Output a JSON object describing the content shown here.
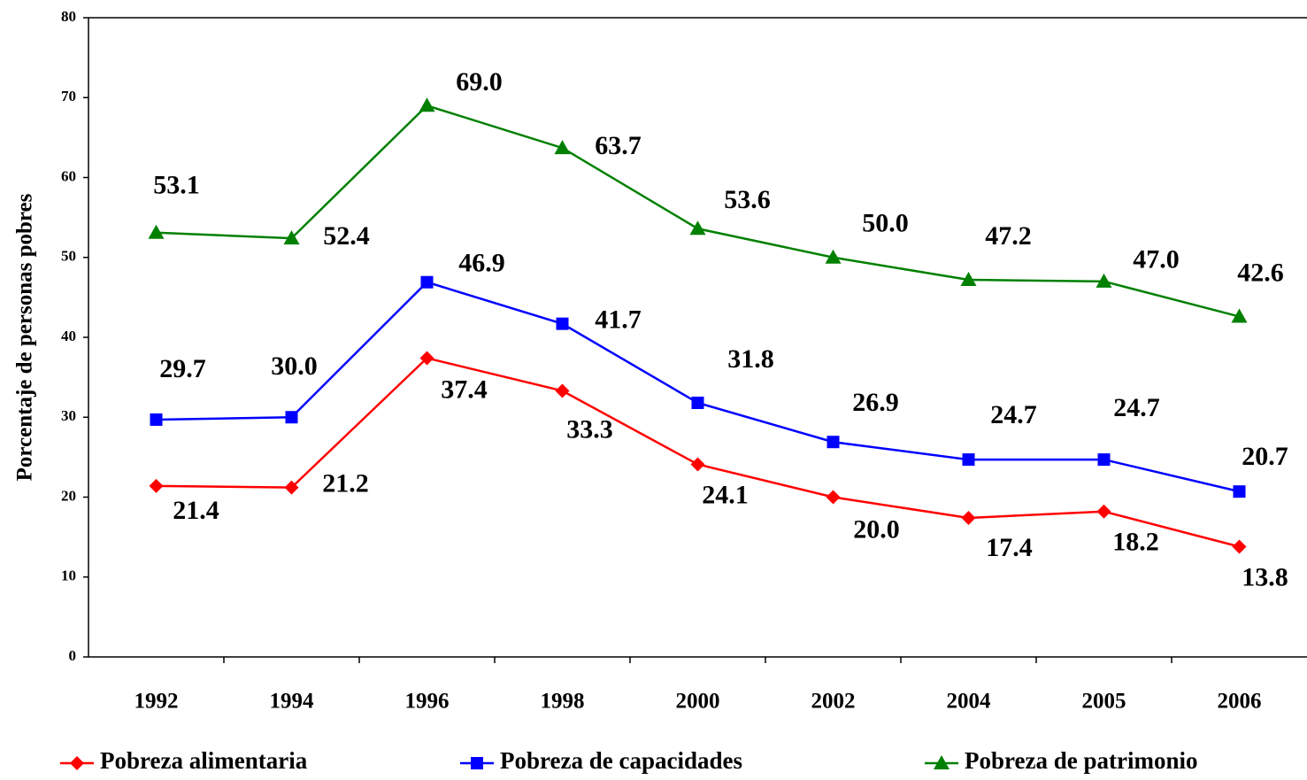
{
  "chart_data": {
    "type": "line",
    "ylabel": "Porcentaje de personas pobres",
    "categories": [
      "1992",
      "1994",
      "1996",
      "1998",
      "2000",
      "2002",
      "2004",
      "2005",
      "2006"
    ],
    "ylim": [
      0,
      80
    ],
    "yticks": [
      0,
      10,
      20,
      30,
      40,
      50,
      60,
      70,
      80
    ],
    "grid": false,
    "legend": "bottom",
    "series": [
      {
        "name": "Pobreza alimentaria",
        "color": "#ff0000",
        "marker": "diamond",
        "values": [
          21.4,
          21.2,
          37.4,
          33.3,
          24.1,
          20.0,
          17.4,
          18.2,
          13.8
        ],
        "value_labels": [
          "21.4",
          "21.2",
          "37.4",
          "33.3",
          "24.1",
          "20.0",
          "17.4",
          "18.2",
          "13.8"
        ]
      },
      {
        "name": "Pobreza de capacidades",
        "color": "#0000ff",
        "marker": "square",
        "values": [
          29.7,
          30.0,
          46.9,
          41.7,
          31.8,
          26.9,
          24.7,
          24.7,
          20.7
        ],
        "value_labels": [
          "29.7",
          "30.0",
          "46.9",
          "41.7",
          "31.8",
          "26.9",
          "24.7",
          "24.7",
          "20.7"
        ]
      },
      {
        "name": "Pobreza de patrimonio",
        "color": "#008000",
        "marker": "triangle",
        "values": [
          53.1,
          52.4,
          69.0,
          63.7,
          53.6,
          50.0,
          47.2,
          47.0,
          42.6
        ],
        "value_labels": [
          "53.1",
          "52.4",
          "69.0",
          "63.7",
          "53.6",
          "50.0",
          "47.2",
          "47.0",
          "42.6"
        ]
      }
    ]
  }
}
